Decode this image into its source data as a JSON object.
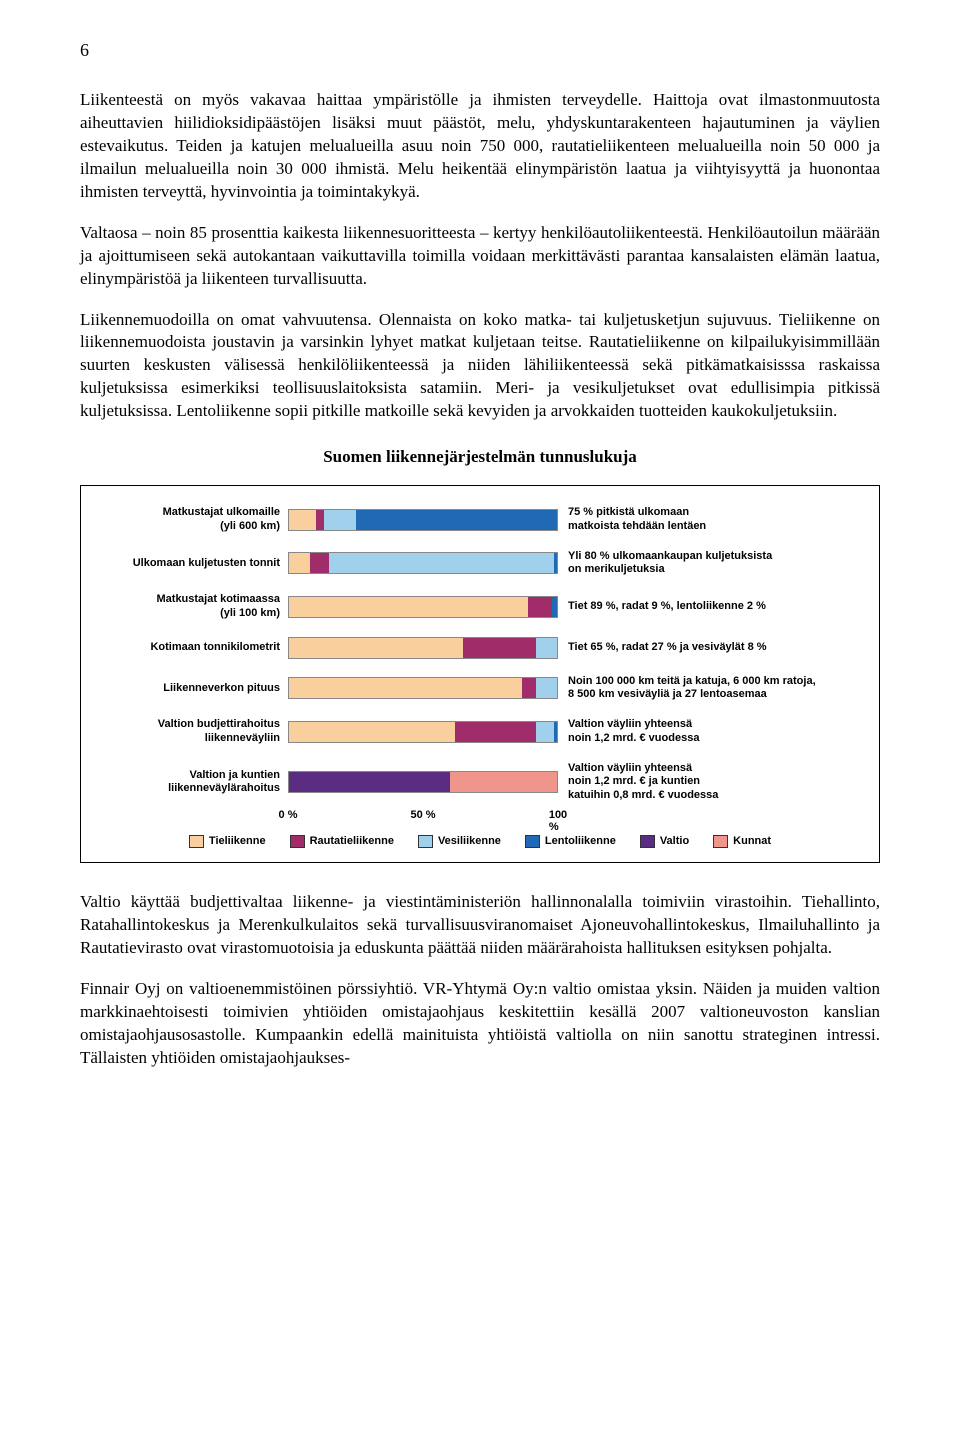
{
  "pageNumber": "6",
  "paragraphs": {
    "p1": "Liikenteestä on myös vakavaa haittaa ympäristölle ja ihmisten terveydelle. Haittoja ovat ilmastonmuutosta aiheuttavien hiilidioksidipäästöjen lisäksi muut päästöt, melu, yhdyskuntarakenteen hajautuminen ja väylien estevaikutus. Teiden ja katujen melualueilla asuu noin 750 000, rautatieliikenteen melualueilla noin 50 000 ja ilmailun melualueilla noin 30 000 ihmistä. Melu heikentää elinympäristön laatua ja viihtyisyyttä ja huonontaa ihmisten terveyttä, hyvinvointia ja toimintakykyä.",
    "p2": "Valtaosa – noin 85 prosenttia kaikesta liikennesuoritteesta – kertyy henkilöautoliikenteestä. Henkilöautoilun määrään ja ajoittumiseen sekä autokantaan vaikuttavilla toimilla voidaan merkittävästi parantaa kansalaisten elämän laatua, elinympäristöä ja liikenteen turvallisuutta.",
    "p3": "Liikennemuodoilla on omat vahvuutensa. Olennaista on koko matka- tai kuljetusketjun sujuvuus. Tieliikenne on liikennemuodoista joustavin ja varsinkin lyhyet matkat kuljetaan teitse. Rautatieliikenne on kilpailukyisimmillään suurten keskusten välisessä henkilöliikenteessä ja niiden lähiliikenteessä sekä pitkämatkaisisssa raskaissa kuljetuksissa esimerkiksi teollisuuslaitoksista satamiin. Meri- ja vesikuljetukset ovat edullisimpia pitkissä kuljetuksissa. Lentoliikenne sopii pitkille matkoille sekä kevyiden ja arvokkaiden tuotteiden kaukokuljetuksiin.",
    "p4": "Valtio käyttää budjettivaltaa liikenne- ja viestintäministeriön hallinnonalalla toimiviin virastoihin. Tiehallinto, Ratahallintokeskus ja Merenkulkulaitos sekä turvallisuusviranomaiset Ajoneuvohallintokeskus, Ilmailuhallinto ja Rautatievirasto ovat virastomuotoisia ja eduskunta päättää niiden määrärahoista hallituksen esityksen pohjalta.",
    "p5": "Finnair Oyj on valtioenemmistöinen pörssiyhtiö. VR-Yhtymä Oy:n valtio omistaa yksin. Näiden ja muiden valtion markkinaehtoisesti toimivien yhtiöiden omistajaohjaus keskitettiin kesällä 2007 valtioneuvoston kanslian omistajaohjausosastolle. Kumpaankin edellä mainituista yhtiöistä valtiolla on niin sanottu strateginen intressi. Tällaisten yhtiöiden omistajaohjaukses-"
  },
  "chartTitle": "Suomen liikennejärjestelmän tunnuslukuja",
  "colors": {
    "tie": "#f8cf9d",
    "rauta": "#a02d6a",
    "vesi": "#a0d0ec",
    "lento": "#1f69b5",
    "valtio": "#5a2d82",
    "kunnat": "#f0958c",
    "track_border": "#888888"
  },
  "rows": [
    {
      "label": "Matkustajat ulkomaille\n(yli 600 km)",
      "annot": "75 % pitkistä ulkomaan\nmatkoista tehdään lentäen",
      "segments": [
        {
          "colorKey": "tie",
          "pct": 10
        },
        {
          "colorKey": "rauta",
          "pct": 3
        },
        {
          "colorKey": "vesi",
          "pct": 12
        },
        {
          "colorKey": "lento",
          "pct": 75
        }
      ]
    },
    {
      "label": "Ulkomaan kuljetusten tonnit",
      "annot": "Yli 80 % ulkomaankaupan kuljetuksista\non merikuljetuksia",
      "segments": [
        {
          "colorKey": "tie",
          "pct": 8
        },
        {
          "colorKey": "rauta",
          "pct": 7
        },
        {
          "colorKey": "vesi",
          "pct": 84
        },
        {
          "colorKey": "lento",
          "pct": 1
        }
      ]
    },
    {
      "label": "Matkustajat kotimaassa\n(yli 100 km)",
      "annot": "Tiet 89 %, radat 9 %, lentoliikenne 2 %",
      "segments": [
        {
          "colorKey": "tie",
          "pct": 89
        },
        {
          "colorKey": "rauta",
          "pct": 9
        },
        {
          "colorKey": "lento",
          "pct": 2
        }
      ]
    },
    {
      "label": "Kotimaan tonnikilometrit",
      "annot": "Tiet 65 %, radat 27 % ja vesiväylät 8 %",
      "segments": [
        {
          "colorKey": "tie",
          "pct": 65
        },
        {
          "colorKey": "rauta",
          "pct": 27
        },
        {
          "colorKey": "vesi",
          "pct": 8
        }
      ]
    },
    {
      "label": "Liikenneverkon pituus",
      "annot": "Noin 100 000 km teitä ja katuja, 6 000 km ratoja,\n8 500 km vesiväyliä ja 27 lentoasemaa",
      "segments": [
        {
          "colorKey": "tie",
          "pct": 87
        },
        {
          "colorKey": "rauta",
          "pct": 5
        },
        {
          "colorKey": "vesi",
          "pct": 8
        }
      ]
    },
    {
      "label": "Valtion budjettirahoitus\nliikenneväyliin",
      "annot": "Valtion väyliin yhteensä\nnoin 1,2 mrd. € vuodessa",
      "segments": [
        {
          "colorKey": "tie",
          "pct": 62
        },
        {
          "colorKey": "rauta",
          "pct": 30
        },
        {
          "colorKey": "vesi",
          "pct": 7
        },
        {
          "colorKey": "lento",
          "pct": 1
        }
      ]
    },
    {
      "label": "Valtion ja kuntien\nliikenneväylärahoitus",
      "annot": "Valtion väyliin yhteensä\nnoin 1,2 mrd. € ja kuntien\nkatuihin 0,8 mrd. € vuodessa",
      "segments": [
        {
          "colorKey": "valtio",
          "pct": 60
        },
        {
          "colorKey": "kunnat",
          "pct": 40
        }
      ]
    }
  ],
  "axis": {
    "ticks": [
      "0 %",
      "50 %",
      "100 %"
    ]
  },
  "legend": [
    {
      "label": "Tieliikenne",
      "colorKey": "tie"
    },
    {
      "label": "Rautatieliikenne",
      "colorKey": "rauta"
    },
    {
      "label": "Vesiliikenne",
      "colorKey": "vesi"
    },
    {
      "label": "Lentoliikenne",
      "colorKey": "lento"
    },
    {
      "label": "Valtio",
      "colorKey": "valtio"
    },
    {
      "label": "Kunnat",
      "colorKey": "kunnat"
    }
  ]
}
